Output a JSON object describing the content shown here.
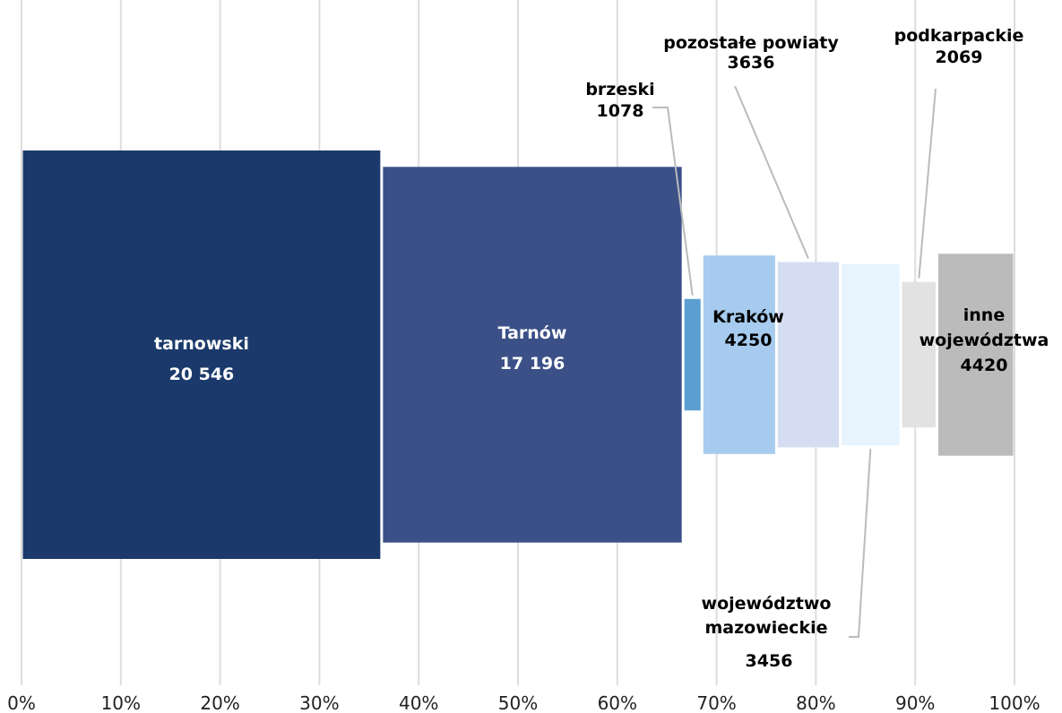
{
  "chart_data": {
    "type": "bar",
    "subtype": "variable-width",
    "x_axis_ticks": [
      "0%",
      "10%",
      "20%",
      "30%",
      "40%",
      "50%",
      "60%",
      "70%",
      "80%",
      "90%",
      "100%"
    ],
    "xlim": [
      0,
      100
    ],
    "grid": true,
    "categories": [
      "tarnowski",
      "Tarnów",
      "brzeski",
      "Kraków",
      "pozostałe powiaty",
      "województwo mazowieckie",
      "podkarpackie",
      "inne województwa"
    ],
    "values": [
      20546,
      17196,
      1078,
      4250,
      3636,
      3456,
      2069,
      4420
    ],
    "value_labels": [
      "20 546",
      "17 196",
      "1078",
      "4250",
      "3636",
      "3456",
      "2069",
      "4420"
    ],
    "colors": [
      "#1b3a6b",
      "#3a5087",
      "#5b9fd2",
      "#a6cbee",
      "#d5ddf2",
      "#e8f4fd",
      "#e2e2e2",
      "#bbbbbb"
    ],
    "label_colors": [
      "#ffffff",
      "#ffffff",
      "#000000",
      "#000000",
      "#000000",
      "#000000",
      "#000000",
      "#000000"
    ]
  }
}
